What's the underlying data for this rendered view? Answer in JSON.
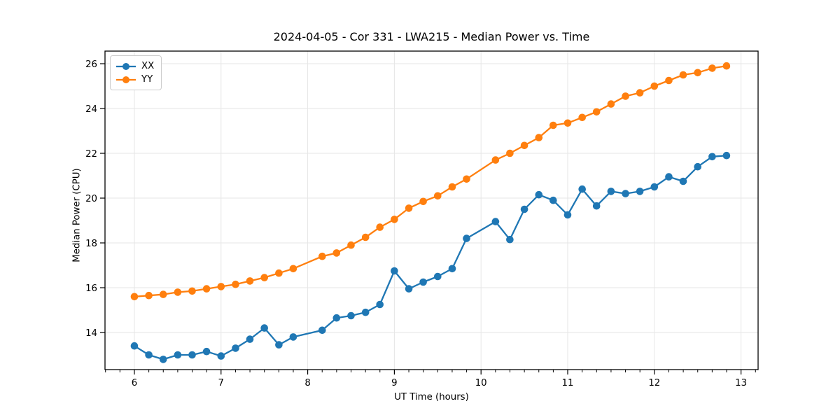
{
  "title": "2024-04-05 - Cor 331 - LWA215 - Median Power vs. Time",
  "chart_data": {
    "type": "line",
    "title": "2024-04-05 - Cor 331 - LWA215 - Median Power vs. Time",
    "xlabel": "UT Time (hours)",
    "ylabel": "Median Power (CPU)",
    "xlim": [
      5.661,
      13.197
    ],
    "ylim": [
      12.344,
      26.563
    ],
    "x_major_ticks": [
      6,
      7,
      8,
      9,
      10,
      11,
      12,
      13
    ],
    "x_minor_tick_step": 0.16667,
    "y_ticks": [
      14,
      16,
      18,
      20,
      22,
      24,
      26
    ],
    "grid": true,
    "grid_color": "#e6e6e6",
    "background": "#ffffff",
    "legend_position": "upper-left",
    "x": [
      6,
      6.167,
      6.333,
      6.5,
      6.667,
      6.833,
      7,
      7.167,
      7.333,
      7.5,
      7.667,
      7.833,
      8.167,
      8.333,
      8.5,
      8.667,
      8.833,
      9,
      9.167,
      9.333,
      9.5,
      9.667,
      9.833,
      10.167,
      10.333,
      10.5,
      10.667,
      10.833,
      11,
      11.167,
      11.333,
      11.5,
      11.667,
      11.833,
      12,
      12.167,
      12.333,
      12.5,
      12.667,
      12.833
    ],
    "series": [
      {
        "name": "XX",
        "color": "#1f77b4",
        "values": [
          13.4,
          13.0,
          12.8,
          13.0,
          13.0,
          13.15,
          12.95,
          13.3,
          13.7,
          14.2,
          13.45,
          13.8,
          14.1,
          14.65,
          14.75,
          14.9,
          15.25,
          16.75,
          15.95,
          16.25,
          16.5,
          16.85,
          18.2,
          18.95,
          18.15,
          19.5,
          20.15,
          19.9,
          19.25,
          20.4,
          19.65,
          20.3,
          20.2,
          20.3,
          20.5,
          20.95,
          20.75,
          21.4,
          21.85,
          21.9
        ]
      },
      {
        "name": "YY",
        "color": "#ff7f0e",
        "values": [
          15.6,
          15.65,
          15.7,
          15.8,
          15.85,
          15.95,
          16.05,
          16.15,
          16.3,
          16.45,
          16.65,
          16.85,
          17.4,
          17.55,
          17.9,
          18.25,
          18.7,
          19.05,
          19.55,
          19.85,
          20.1,
          20.5,
          20.85,
          21.7,
          22.0,
          22.35,
          22.7,
          23.25,
          23.35,
          23.6,
          23.85,
          24.2,
          24.55,
          24.7,
          25.0,
          25.25,
          25.5,
          25.6,
          25.8,
          25.9
        ]
      }
    ]
  },
  "legend": {
    "items": [
      {
        "label": "XX",
        "color": "#1f77b4"
      },
      {
        "label": "YY",
        "color": "#ff7f0e"
      }
    ]
  }
}
